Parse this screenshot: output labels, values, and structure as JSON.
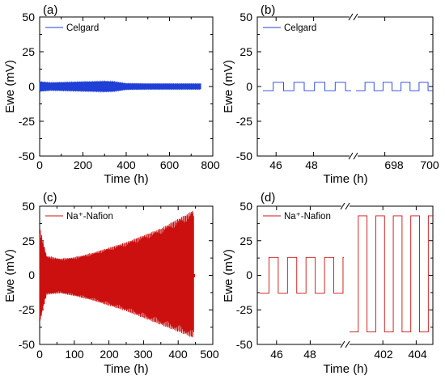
{
  "colors": {
    "celgard": "#1f3fd6",
    "nafion": "#cc1010",
    "axis": "#000000"
  },
  "chart_data": [
    {
      "panel_label": "(a)",
      "type": "line",
      "xlabel": "Time (h)",
      "ylabel": "Ewe (mV)",
      "xlim": [
        0,
        800
      ],
      "ylim": [
        -50,
        50
      ],
      "xticks": [
        "0",
        "200",
        "400",
        "600",
        "800"
      ],
      "yticks": [
        "50",
        "25",
        "0",
        "-25",
        "-50"
      ],
      "series": [
        {
          "name": "Celgard",
          "color": "#1f3fd6",
          "style": "dense_cycling_band",
          "x": [
            0,
            50,
            100,
            150,
            200,
            250,
            300,
            340,
            400,
            450,
            500,
            600,
            700,
            745
          ],
          "y_max": [
            3.5,
            2.8,
            3.0,
            3.2,
            3.4,
            3.6,
            3.8,
            3.6,
            2.2,
            2.1,
            2.0,
            2.0,
            2.0,
            2.0
          ],
          "y_min": [
            -3.5,
            -2.8,
            -3.0,
            -3.2,
            -3.4,
            -3.6,
            -3.8,
            -3.6,
            -2.2,
            -2.1,
            -2.0,
            -2.0,
            -2.0,
            -2.0
          ]
        }
      ]
    },
    {
      "panel_label": "(b)",
      "type": "line",
      "xlabel": "Time (h)",
      "ylabel": "Ewe (mV)",
      "broken_axis": true,
      "segments": [
        [
          45,
          50
        ],
        [
          696.8,
          700
        ]
      ],
      "ylim": [
        -50,
        50
      ],
      "xticks": [
        "46",
        "48",
        "698",
        "700"
      ],
      "yticks": [
        "50",
        "25",
        "0",
        "-25",
        "-50"
      ],
      "series": [
        {
          "name": "Celgard",
          "color": "#1f3fd6",
          "style": "square_wave",
          "amplitude": 3,
          "segment_1": {
            "x_start": 45.3,
            "x_end": 50,
            "period": 1.1
          },
          "segment_2": {
            "x_start": 696.8,
            "x_end": 700,
            "period": 0.75
          }
        }
      ]
    },
    {
      "panel_label": "(c)",
      "type": "line",
      "xlabel": "Time (h)",
      "ylabel": "Ewe (mV)",
      "xlim": [
        0,
        500
      ],
      "ylim": [
        -50,
        50
      ],
      "xticks": [
        "0",
        "100",
        "200",
        "300",
        "400",
        "500"
      ],
      "yticks": [
        "50",
        "25",
        "0",
        "-25",
        "-50"
      ],
      "series": [
        {
          "name": "Na⁺-Nafion",
          "color": "#cc1010",
          "style": "dense_cycling_band",
          "x": [
            0,
            20,
            60,
            100,
            150,
            200,
            250,
            300,
            350,
            400,
            430,
            445
          ],
          "y_max": [
            35,
            14,
            12,
            13,
            16,
            20,
            24,
            29,
            34,
            41,
            45,
            48
          ],
          "y_min": [
            -35,
            -14,
            -13,
            -15,
            -18,
            -22,
            -26,
            -31,
            -36,
            -41,
            -44,
            -46
          ]
        }
      ]
    },
    {
      "panel_label": "(d)",
      "type": "line",
      "xlabel": "Time (h)",
      "ylabel": "Ewe (mV)",
      "broken_axis": true,
      "segments": [
        [
          45,
          50
        ],
        [
          400,
          405
        ]
      ],
      "ylim": [
        -50,
        50
      ],
      "xticks": [
        "46",
        "48",
        "402",
        "404"
      ],
      "yticks": [
        "50",
        "25",
        "0",
        "-25",
        "-50"
      ],
      "series": [
        {
          "name": "Na⁺-Nafion",
          "color": "#cc1010",
          "style": "square_wave",
          "segment_1": {
            "x_start": 45,
            "x_end": 50,
            "period": 1.1,
            "y_high": 13,
            "y_low": -13
          },
          "segment_2": {
            "x_start": 400,
            "x_end": 405,
            "period": 1.05,
            "y_high": 43,
            "y_low": -41
          }
        }
      ]
    }
  ]
}
